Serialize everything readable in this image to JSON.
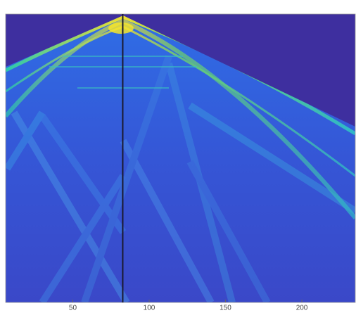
{
  "chart_data": {
    "type": "heatmap",
    "xlim": [
      6,
      235
    ],
    "xticks": [
      50,
      100,
      150,
      200
    ],
    "marker_line_x": 82.7,
    "marker_line_color": "#1a1a2e"
  }
}
